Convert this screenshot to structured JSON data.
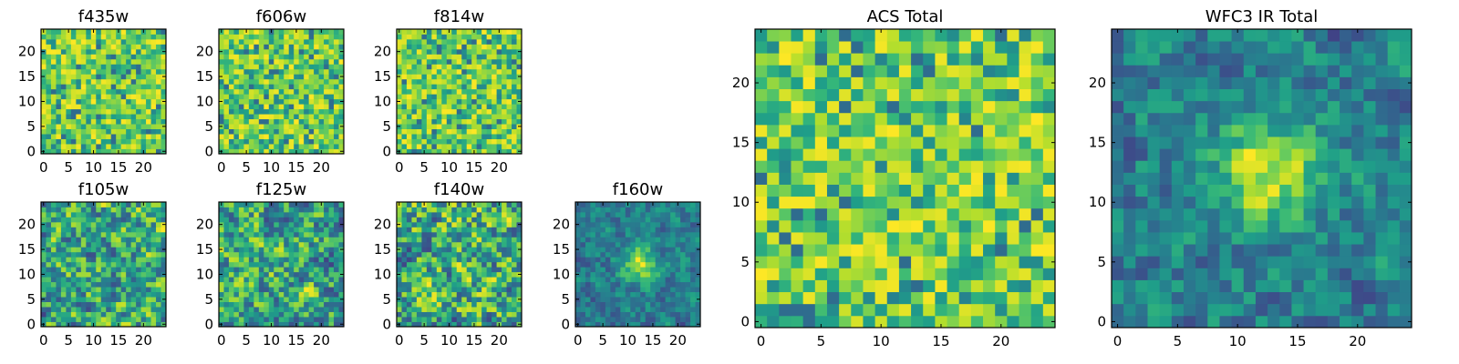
{
  "chart_data": [
    {
      "type": "heatmap",
      "title": "f435w",
      "seed": 11,
      "mode": "noise",
      "xticks": [
        "0",
        "5",
        "10",
        "15",
        "20"
      ],
      "yticks": [
        "0",
        "5",
        "10",
        "15",
        "20"
      ],
      "xlim": [
        -0.5,
        24.5
      ],
      "ylim": [
        -0.5,
        24.5
      ],
      "grid_size": [
        25,
        25
      ],
      "colormap": "viridis"
    },
    {
      "type": "heatmap",
      "title": "f606w",
      "seed": 23,
      "mode": "noise",
      "xticks": [
        "0",
        "5",
        "10",
        "15",
        "20"
      ],
      "yticks": [
        "0",
        "5",
        "10",
        "15",
        "20"
      ],
      "xlim": [
        -0.5,
        24.5
      ],
      "ylim": [
        -0.5,
        24.5
      ],
      "grid_size": [
        25,
        25
      ],
      "colormap": "viridis"
    },
    {
      "type": "heatmap",
      "title": "f814w",
      "seed": 37,
      "mode": "noise",
      "xticks": [
        "0",
        "5",
        "10",
        "15",
        "20"
      ],
      "yticks": [
        "0",
        "5",
        "10",
        "15",
        "20"
      ],
      "xlim": [
        -0.5,
        24.5
      ],
      "ylim": [
        -0.5,
        24.5
      ],
      "grid_size": [
        25,
        25
      ],
      "colormap": "viridis"
    },
    {
      "type": "heatmap",
      "title": "f105w",
      "seed": 41,
      "mode": "smooth",
      "xticks": [
        "0",
        "5",
        "10",
        "15",
        "20"
      ],
      "yticks": [
        "0",
        "5",
        "10",
        "15",
        "20"
      ],
      "xlim": [
        -0.5,
        24.5
      ],
      "ylim": [
        -0.5,
        24.5
      ],
      "grid_size": [
        25,
        25
      ],
      "colormap": "viridis"
    },
    {
      "type": "heatmap",
      "title": "f125w",
      "seed": 53,
      "mode": "smooth",
      "xticks": [
        "0",
        "5",
        "10",
        "15",
        "20"
      ],
      "yticks": [
        "0",
        "5",
        "10",
        "15",
        "20"
      ],
      "xlim": [
        -0.5,
        24.5
      ],
      "ylim": [
        -0.5,
        24.5
      ],
      "grid_size": [
        25,
        25
      ],
      "colormap": "viridis"
    },
    {
      "type": "heatmap",
      "title": "f140w",
      "seed": 67,
      "mode": "smooth",
      "xticks": [
        "0",
        "5",
        "10",
        "15",
        "20"
      ],
      "yticks": [
        "0",
        "5",
        "10",
        "15",
        "20"
      ],
      "xlim": [
        -0.5,
        24.5
      ],
      "ylim": [
        -0.5,
        24.5
      ],
      "grid_size": [
        25,
        25
      ],
      "colormap": "viridis"
    },
    {
      "type": "heatmap",
      "title": "f160w",
      "seed": 79,
      "mode": "source",
      "source_center": [
        12.5,
        12
      ],
      "source_sigma": 2.6,
      "source_amplitude": 0.65,
      "xticks": [
        "0",
        "5",
        "10",
        "15",
        "20"
      ],
      "yticks": [
        "0",
        "5",
        "10",
        "15",
        "20"
      ],
      "xlim": [
        -0.5,
        24.5
      ],
      "ylim": [
        -0.5,
        24.5
      ],
      "grid_size": [
        25,
        25
      ],
      "colormap": "viridis"
    },
    {
      "type": "heatmap",
      "title": "ACS Total",
      "seed": 97,
      "mode": "noise",
      "xticks": [
        "0",
        "5",
        "10",
        "15",
        "20"
      ],
      "yticks": [
        "0",
        "5",
        "10",
        "15",
        "20"
      ],
      "xlim": [
        -0.5,
        24.5
      ],
      "ylim": [
        -0.5,
        24.5
      ],
      "grid_size": [
        25,
        25
      ],
      "colormap": "viridis"
    },
    {
      "type": "heatmap",
      "title": "WFC3 IR Total",
      "seed": 113,
      "mode": "source",
      "source_center": [
        12.5,
        12.5
      ],
      "source_sigma": 3.0,
      "source_amplitude": 0.6,
      "xticks": [
        "0",
        "5",
        "10",
        "15",
        "20"
      ],
      "yticks": [
        "0",
        "5",
        "10",
        "15",
        "20"
      ],
      "xlim": [
        -0.5,
        24.5
      ],
      "ylim": [
        -0.5,
        24.5
      ],
      "grid_size": [
        25,
        25
      ],
      "colormap": "viridis"
    }
  ]
}
